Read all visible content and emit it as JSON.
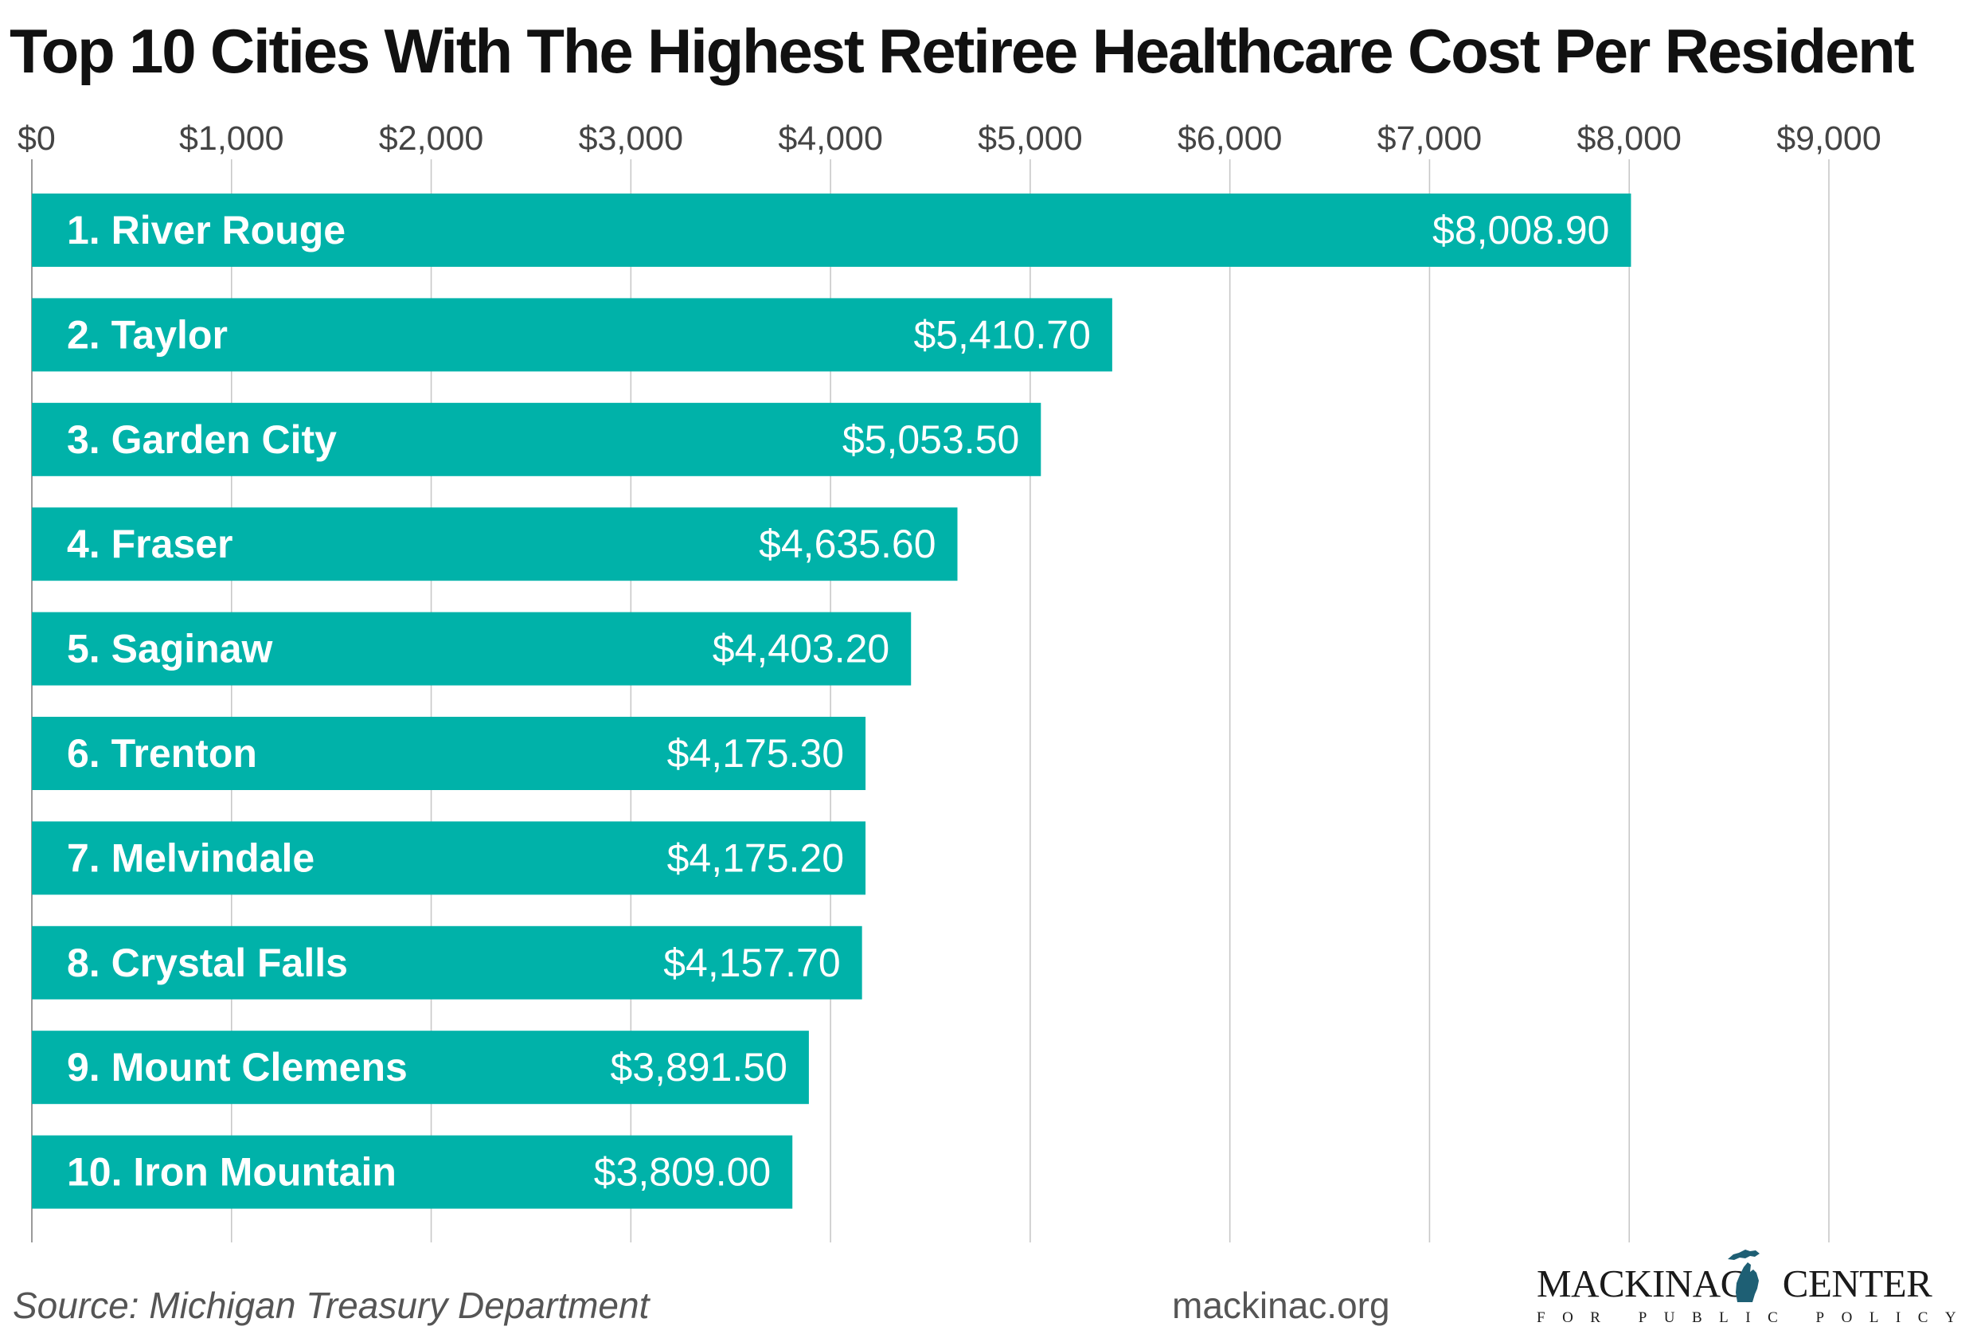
{
  "chart_data": {
    "type": "bar",
    "orientation": "horizontal",
    "title": "Top 10 Cities With The Highest Retiree Healthcare Cost Per Resident",
    "categories": [
      "1. River Rouge",
      "2. Taylor",
      "3. Garden City",
      "4. Fraser",
      "5. Saginaw",
      "6. Trenton",
      "7. Melvindale",
      "8. Crystal Falls",
      "9. Mount Clemens",
      "10. Iron Mountain"
    ],
    "values": [
      8008.9,
      5410.7,
      5053.5,
      4635.6,
      4403.2,
      4175.3,
      4175.2,
      4157.7,
      3891.5,
      3809.0
    ],
    "value_labels": [
      "$8,008.90",
      "$5,410.70",
      "$5,053.50",
      "$4,635.60",
      "$4,403.20",
      "$4,175.30",
      "$4,175.20",
      "$4,157.70",
      "$3,891.50",
      "$3,809.00"
    ],
    "xlim": [
      0,
      9000
    ],
    "ticks": [
      0,
      1000,
      2000,
      3000,
      4000,
      5000,
      6000,
      7000,
      8000,
      9000
    ],
    "tick_labels": [
      "$0",
      "$1,000",
      "$2,000",
      "$3,000",
      "$4,000",
      "$5,000",
      "$6,000",
      "$7,000",
      "$8,000",
      "$9,000"
    ],
    "axis_position": "top",
    "grid": true,
    "xlabel": "",
    "ylabel": ""
  },
  "colors": {
    "bar": "#00b2a9",
    "grid": "#c8c8c8",
    "logo_map": "#1e5f74"
  },
  "footer": {
    "source": "Source: Michigan Treasury Department",
    "site": "mackinac.org"
  },
  "logo": {
    "name_left": "MACKINAC",
    "name_right": "CENTER",
    "tagline": "FOR PUBLIC POLICY",
    "icon": "michigan-map-icon"
  }
}
